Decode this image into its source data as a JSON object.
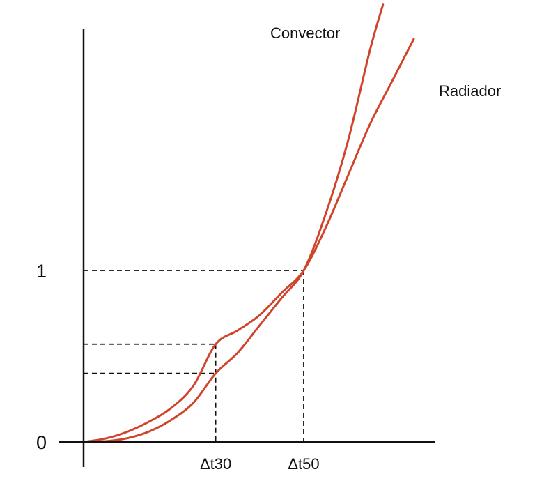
{
  "chart_data": {
    "type": "line",
    "xlabel": "",
    "ylabel": "",
    "x_ticks": [
      {
        "value": 30,
        "label": "Δt30"
      },
      {
        "value": 50,
        "label": "Δt50"
      }
    ],
    "y_ticks": [
      {
        "value": 0,
        "label": "0"
      },
      {
        "value": 1,
        "label": "1"
      }
    ],
    "xlim": [
      0,
      75
    ],
    "ylim": [
      0,
      2.72
    ],
    "grid": false,
    "legend": "none",
    "series": [
      {
        "name": "Convector",
        "color": "#d0442b",
        "x": [
          0,
          5,
          10,
          15,
          20,
          25,
          30,
          35,
          40,
          45,
          50,
          55,
          60,
          65,
          68
        ],
        "y": [
          0,
          0.004,
          0.022,
          0.062,
          0.13,
          0.23,
          0.4,
          0.52,
          0.68,
          0.84,
          1.0,
          1.33,
          1.75,
          2.28,
          2.55
        ]
      },
      {
        "name": "Radiador",
        "color": "#d0442b",
        "x": [
          0,
          5,
          10,
          15,
          20,
          25,
          30,
          35,
          40,
          45,
          50,
          55,
          60,
          65,
          70,
          75
        ],
        "y": [
          0,
          0.02,
          0.06,
          0.12,
          0.2,
          0.33,
          0.57,
          0.65,
          0.74,
          0.87,
          1.0,
          1.25,
          1.55,
          1.85,
          2.1,
          2.35
        ]
      }
    ],
    "reference_lines": [
      {
        "x": 50,
        "y": 1
      },
      {
        "x": 30,
        "y": 0.57
      },
      {
        "x": 30,
        "y": 0.4
      }
    ]
  }
}
